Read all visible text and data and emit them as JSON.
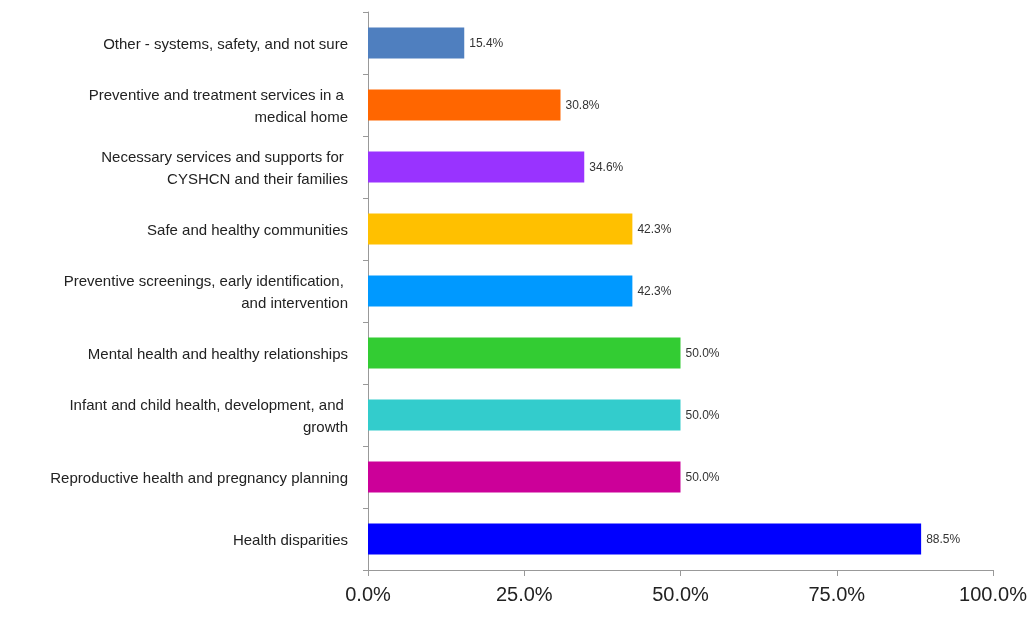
{
  "chart_data": {
    "type": "bar",
    "orientation": "horizontal",
    "categories": [
      "Other - systems, safety, and not sure",
      "Preventive and treatment services in a medical home",
      "Necessary services and supports for CYSHCN and their families",
      "Safe and healthy communities",
      "Preventive screenings, early identification, and intervention",
      "Mental health and healthy relationships",
      "Infant and child health, development, and growth",
      "Reproductive health and pregnancy planning",
      "Health disparities"
    ],
    "values": [
      15.4,
      30.8,
      34.6,
      42.3,
      42.3,
      50.0,
      50.0,
      50.0,
      88.5
    ],
    "value_labels": [
      "15.4%",
      "30.8%",
      "34.6%",
      "42.3%",
      "42.3%",
      "50.0%",
      "50.0%",
      "50.0%",
      "88.5%"
    ],
    "colors": [
      "#4f7fbf",
      "#ff6600",
      "#9933ff",
      "#ffc000",
      "#0099ff",
      "#33cc33",
      "#33cccc",
      "#cc0099",
      "#0000ff"
    ],
    "xlim": [
      0,
      100
    ],
    "xticks": [
      {
        "value": 0,
        "label": "0.0%"
      },
      {
        "value": 25,
        "label": "25.0%"
      },
      {
        "value": 50,
        "label": "50.0%"
      },
      {
        "value": 75,
        "label": "75.0%"
      },
      {
        "value": 100,
        "label": "100.0%"
      }
    ],
    "grid": false
  }
}
